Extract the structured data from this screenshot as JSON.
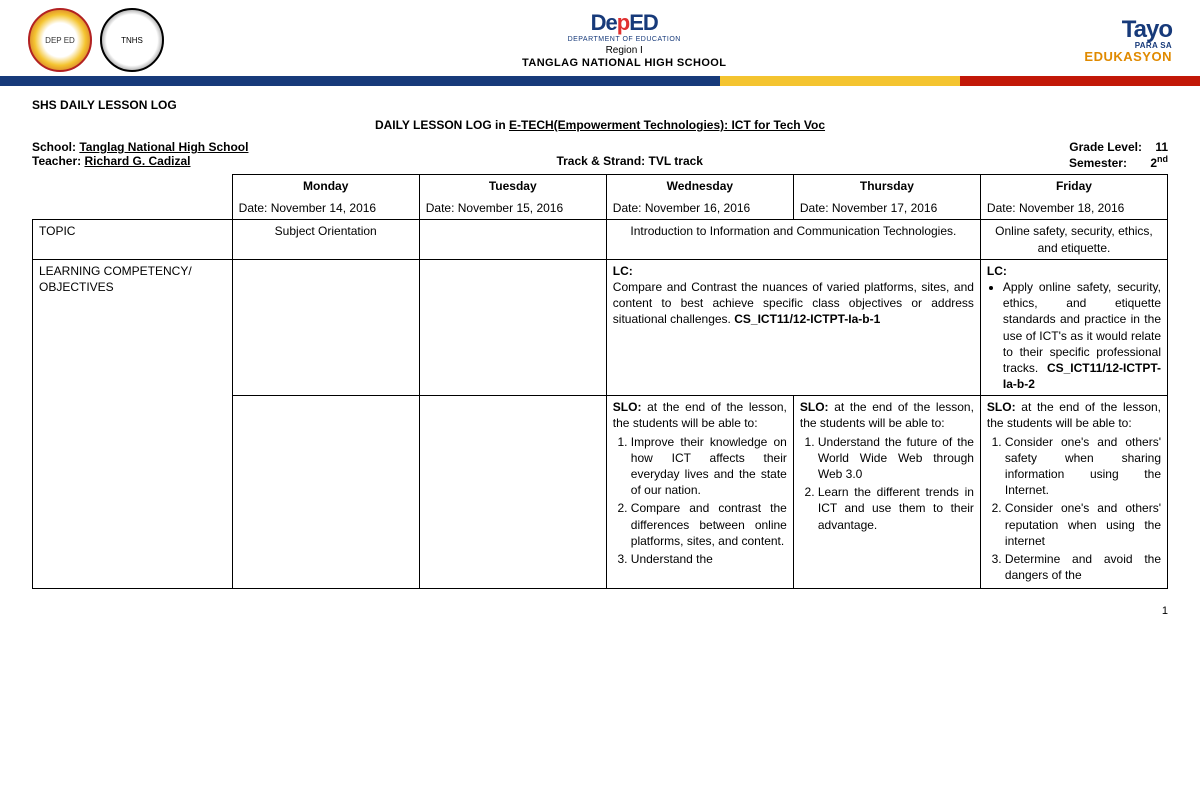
{
  "header": {
    "deped_main": "DepED",
    "deped_sub": "DEPARTMENT OF EDUCATION",
    "region": "Region I",
    "school_caps": "TANGLAG NATIONAL HIGH SCHOOL",
    "tayo": "Tayo",
    "tayo_para": "PARA SA",
    "tayo_edu": "EDUKASYON"
  },
  "meta": {
    "section_title": "SHS DAILY LESSON LOG",
    "center_pre": "DAILY LESSON LOG in ",
    "center_u": "E-TECH(Empowerment Technologies): ICT for Tech Voc",
    "school_label": "School: ",
    "school": "Tanglag National High School",
    "teacher_label": "Teacher: ",
    "teacher": "Richard G. Cadizal",
    "track_label": "Track & Strand: ",
    "track": "TVL track",
    "grade_label": "Grade Level:",
    "grade": "11",
    "sem_label": "Semester:",
    "sem": "2",
    "sem_sup": "nd"
  },
  "days": {
    "mon": {
      "name": "Monday",
      "date": "Date:  November 14, 2016"
    },
    "tue": {
      "name": "Tuesday",
      "date": "Date: November 15, 2016"
    },
    "wed": {
      "name": "Wednesday",
      "date": "Date: November 16, 2016"
    },
    "thu": {
      "name": "Thursday",
      "date": "Date: November 17, 2016"
    },
    "fri": {
      "name": "Friday",
      "date": "Date: November 18, 2016"
    }
  },
  "rows": {
    "topic_label": "TOPIC",
    "lc_label": "LEARNING COMPETENCY/ OBJECTIVES",
    "topic_mon": "Subject Orientation",
    "topic_wedthu": "Introduction to Information and Communication Technologies.",
    "topic_fri": "Online safety, security, ethics, and etiquette."
  },
  "lc": {
    "wedthu_label": "LC:",
    "wedthu_text": "Compare and Contrast the nuances of varied platforms, sites, and content to best achieve specific class objectives or address situational challenges. ",
    "wedthu_code": "CS_ICT11/12-ICTPT-Ia-b-1",
    "fri_label": "LC:",
    "fri_bullet": "Apply online safety, security, ethics, and etiquette standards and practice in the use of ICT's as it would relate to their specific professional tracks. ",
    "fri_code": "CS_ICT11/12-ICTPT-Ia-b-2"
  },
  "slo": {
    "wed_lead": "SLO: ",
    "wed_intro": "at the end of the lesson, the students will be able to:",
    "wed_items": [
      "Improve their knowledge on how ICT affects their everyday lives and the state of our nation.",
      "Compare and contrast the differences between online platforms, sites, and content.",
      "Understand the"
    ],
    "thu_lead": "SLO: ",
    "thu_intro": "at the end of the lesson, the students will be able to:",
    "thu_items": [
      "Understand the future of the World Wide Web through Web 3.0",
      "Learn the different trends in ICT and use them to their advantage."
    ],
    "fri_lead": "SLO: ",
    "fri_intro": "at the end of the lesson, the students will be able to:",
    "fri_items": [
      "Consider one's and others' safety when sharing information using the Internet.",
      "Consider one's and others' reputation when using the internet",
      "Determine and avoid the dangers of the"
    ]
  },
  "page_num": "1"
}
